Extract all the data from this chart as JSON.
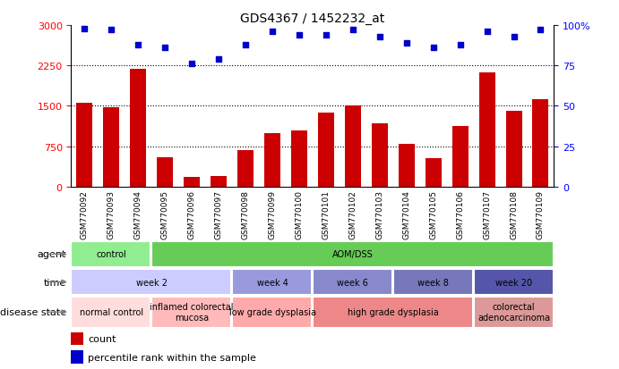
{
  "title": "GDS4367 / 1452232_at",
  "samples": [
    "GSM770092",
    "GSM770093",
    "GSM770094",
    "GSM770095",
    "GSM770096",
    "GSM770097",
    "GSM770098",
    "GSM770099",
    "GSM770100",
    "GSM770101",
    "GSM770102",
    "GSM770103",
    "GSM770104",
    "GSM770105",
    "GSM770106",
    "GSM770107",
    "GSM770108",
    "GSM770109"
  ],
  "counts": [
    1550,
    1470,
    2190,
    550,
    175,
    200,
    680,
    1000,
    1050,
    1380,
    1500,
    1180,
    790,
    525,
    1130,
    2120,
    1410,
    1620
  ],
  "percentiles": [
    98,
    97,
    88,
    86,
    76,
    79,
    88,
    96,
    94,
    94,
    97,
    93,
    89,
    86,
    88,
    96,
    93,
    97
  ],
  "bar_color": "#cc0000",
  "dot_color": "#0000cc",
  "ylim_left": [
    0,
    3000
  ],
  "ylim_right": [
    0,
    100
  ],
  "yticks_left": [
    0,
    750,
    1500,
    2250,
    3000
  ],
  "yticks_right": [
    0,
    25,
    50,
    75,
    100
  ],
  "ytick_labels_right": [
    "0",
    "25",
    "50",
    "75",
    "100%"
  ],
  "gridlines": [
    750,
    1500,
    2250
  ],
  "agent_segments": [
    {
      "text": "control",
      "start": 0,
      "end": 3,
      "color": "#90ee90"
    },
    {
      "text": "AOM/DSS",
      "start": 3,
      "end": 18,
      "color": "#66cc55"
    }
  ],
  "time_segments": [
    {
      "text": "week 2",
      "start": 0,
      "end": 6,
      "color": "#ccccff"
    },
    {
      "text": "week 4",
      "start": 6,
      "end": 9,
      "color": "#9999dd"
    },
    {
      "text": "week 6",
      "start": 9,
      "end": 12,
      "color": "#8888cc"
    },
    {
      "text": "week 8",
      "start": 12,
      "end": 15,
      "color": "#7777bb"
    },
    {
      "text": "week 20",
      "start": 15,
      "end": 18,
      "color": "#5555aa"
    }
  ],
  "disease_segments": [
    {
      "text": "normal control",
      "start": 0,
      "end": 3,
      "color": "#ffdddd"
    },
    {
      "text": "inflamed colorectal\nmucosa",
      "start": 3,
      "end": 6,
      "color": "#ffbbbb"
    },
    {
      "text": "low grade dysplasia",
      "start": 6,
      "end": 9,
      "color": "#ffaaaa"
    },
    {
      "text": "high grade dysplasia",
      "start": 9,
      "end": 15,
      "color": "#ee8888"
    },
    {
      "text": "colorectal\nadenocarcinoma",
      "start": 15,
      "end": 18,
      "color": "#dd9999"
    }
  ],
  "xtick_bg_color": "#cccccc",
  "bg_color": "#ffffff",
  "plot_bg_color": "#ffffff"
}
